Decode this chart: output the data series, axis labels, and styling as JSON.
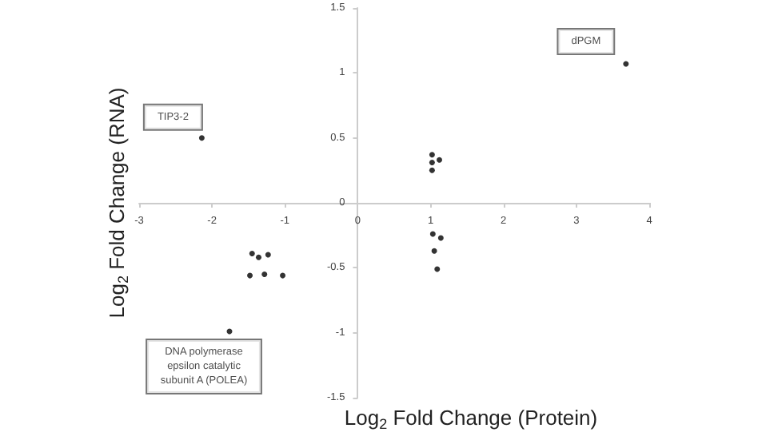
{
  "chart_data": {
    "type": "scatter",
    "xlabel": "Log$_{2}$ Fold Change (Protein)",
    "ylabel": "Log$_{2}$ Fold Change (RNA)",
    "x": [
      -2.14,
      3.68,
      1.02,
      1.02,
      1.02,
      1.12,
      1.03,
      1.14,
      1.05,
      1.09,
      -1.45,
      -1.36,
      -1.23,
      -1.48,
      -1.28,
      -1.03,
      -1.76
    ],
    "values": [
      0.5,
      1.07,
      0.37,
      0.31,
      0.25,
      0.33,
      -0.24,
      -0.27,
      -0.37,
      -0.51,
      -0.39,
      -0.42,
      -0.4,
      -0.56,
      -0.55,
      -0.56,
      -0.99
    ],
    "color": "#000000",
    "marker": "circle",
    "xlim": [
      -3,
      4
    ],
    "xticks": [
      -3,
      -2,
      -1,
      0,
      1,
      2,
      3,
      4
    ],
    "ylim": [
      -1.5,
      1.5
    ],
    "yticks": [
      -1.5,
      -1,
      -0.5,
      0,
      0.5,
      1,
      1.5
    ],
    "grid": false,
    "annotations": [
      {
        "text": "TIP3-2",
        "x": -2.14,
        "y": 0.5
      },
      {
        "text": "dPGM",
        "x": 3.68,
        "y": 1.07
      },
      {
        "text": "DNA polymerase\nepsilon catalytic\nsubunit A (POLEA)",
        "x": -1.76,
        "y": -0.99
      }
    ]
  }
}
